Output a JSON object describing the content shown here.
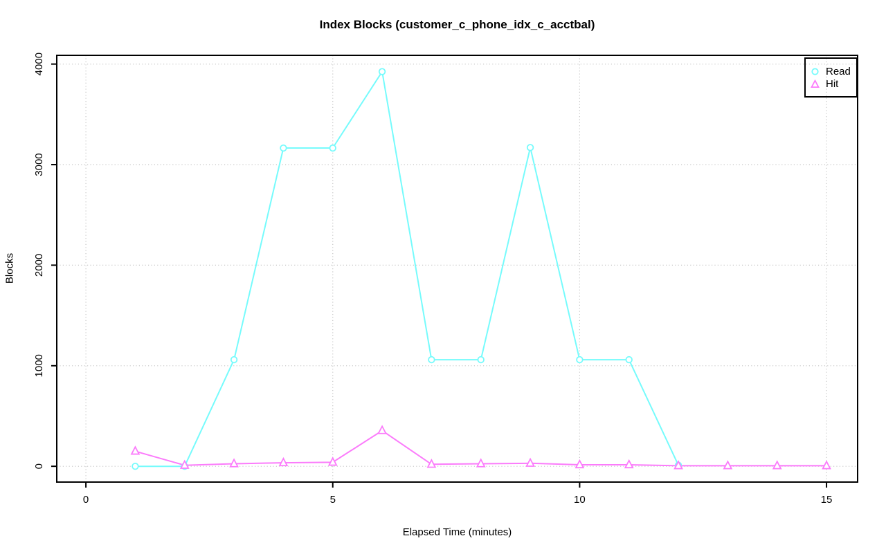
{
  "chart_data": {
    "type": "line",
    "title": "Index Blocks (customer_c_phone_idx_c_acctbal)",
    "xlabel": "Elapsed Time (minutes)",
    "ylabel": "Blocks",
    "x": [
      1,
      2,
      3,
      4,
      5,
      6,
      7,
      8,
      9,
      10,
      11,
      12,
      13,
      14,
      15
    ],
    "series": [
      {
        "name": "Read",
        "marker": "circle",
        "color": "#76fbfc",
        "values": [
          0,
          0,
          1060,
          3165,
          3165,
          3925,
          1060,
          1060,
          3170,
          1060,
          1060,
          10,
          null,
          null,
          null
        ]
      },
      {
        "name": "Hit",
        "marker": "triangle",
        "color": "#fb7bfb",
        "values": [
          150,
          10,
          25,
          35,
          40,
          355,
          20,
          25,
          30,
          15,
          15,
          5,
          5,
          5,
          5
        ]
      }
    ],
    "x_ticks": [
      0,
      5,
      10,
      15
    ],
    "y_ticks": [
      0,
      1000,
      2000,
      3000,
      4000
    ],
    "xlim": [
      -0.59,
      15.63
    ],
    "ylim": [
      -157,
      4087
    ],
    "grid": "dotted",
    "grid_color": "#c6c6c6",
    "axis_color": "#000000",
    "legend_position": "top-right"
  }
}
